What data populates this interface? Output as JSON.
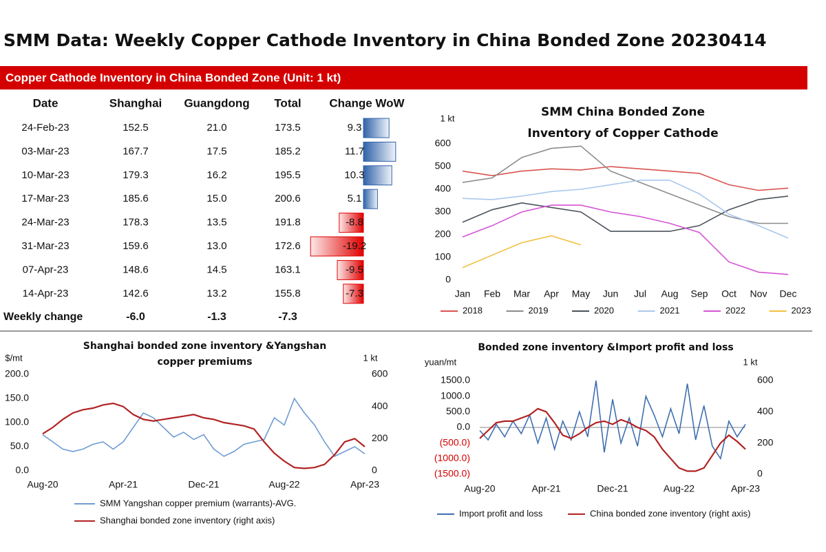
{
  "title": "SMM Data: Weekly Copper Cathode Inventory in China Bonded Zone 20230414",
  "table": {
    "caption": "Copper Cathode Inventory in China Bonded Zone (Unit: 1 kt)",
    "columns": [
      "Date",
      "Shanghai",
      "Guangdong",
      "Total",
      "Change WoW"
    ],
    "rows": [
      [
        "24-Feb-23",
        "152.5",
        "21.0",
        "173.5",
        9.3
      ],
      [
        "03-Mar-23",
        "167.7",
        "17.5",
        "185.2",
        11.7
      ],
      [
        "10-Mar-23",
        "179.3",
        "16.2",
        "195.5",
        10.3
      ],
      [
        "17-Mar-23",
        "185.6",
        "15.0",
        "200.6",
        5.1
      ],
      [
        "24-Mar-23",
        "178.3",
        "13.5",
        "191.8",
        -8.8
      ],
      [
        "31-Mar-23",
        "159.6",
        "13.0",
        "172.6",
        -19.2
      ],
      [
        "07-Apr-23",
        "148.6",
        "14.5",
        "163.1",
        -9.5
      ],
      [
        "14-Apr-23",
        "142.6",
        "13.2",
        "155.8",
        -7.3
      ]
    ],
    "footer": [
      "Weekly change",
      "-6.0",
      "-1.3",
      "-7.3"
    ]
  },
  "chart_data": [
    {
      "type": "line",
      "title": "SMM China Bonded Zone Inventory of Copper Cathode",
      "y_label": "1 kt",
      "categories": [
        "Jan",
        "Feb",
        "Mar",
        "Apr",
        "May",
        "Jun",
        "Jul",
        "Aug",
        "Sep",
        "Oct",
        "Nov",
        "Dec"
      ],
      "ylim": [
        0,
        600
      ],
      "yticks": [
        0,
        100,
        200,
        300,
        400,
        500,
        600
      ],
      "grid": false,
      "legend": "bottom",
      "series": [
        {
          "name": "2018",
          "color": "#d9534f",
          "values": [
            480,
            460,
            480,
            490,
            485,
            500,
            490,
            480,
            470,
            420,
            395,
            405
          ]
        },
        {
          "name": "2019",
          "color": "#8c8c8c",
          "values": [
            430,
            450,
            540,
            580,
            590,
            480,
            430,
            380,
            330,
            280,
            250,
            250
          ]
        },
        {
          "name": "2020",
          "color": "#4a525c",
          "values": [
            255,
            310,
            340,
            320,
            300,
            215,
            215,
            215,
            240,
            310,
            355,
            370
          ]
        },
        {
          "name": "2021",
          "color": "#a9c8ec",
          "values": [
            360,
            355,
            370,
            390,
            400,
            420,
            440,
            440,
            380,
            290,
            240,
            185
          ]
        },
        {
          "name": "2022",
          "color": "#d455d4",
          "values": [
            190,
            240,
            300,
            330,
            330,
            300,
            280,
            250,
            210,
            80,
            35,
            25
          ]
        },
        {
          "name": "2023",
          "color": "#f0c040",
          "values": [
            55,
            110,
            165,
            195,
            155,
            null,
            null,
            null,
            null,
            null,
            null,
            null
          ]
        }
      ]
    },
    {
      "type": "line",
      "title": "Shanghai bonded zone inventory &Yangshan copper premiums",
      "y_label": "$/mt",
      "y2_label": "1 kt",
      "categories": [
        "Aug-20",
        null,
        null,
        null,
        null,
        null,
        null,
        null,
        "Apr-21",
        null,
        null,
        null,
        null,
        null,
        null,
        null,
        "Dec-21",
        null,
        null,
        null,
        null,
        null,
        null,
        null,
        "Aug-22",
        null,
        null,
        null,
        null,
        null,
        null,
        null,
        "Apr-23"
      ],
      "ylim": [
        0,
        200
      ],
      "yticks": [
        {
          "value": 0,
          "label": "0.0"
        },
        {
          "value": 50,
          "label": "50.0"
        },
        {
          "value": 100,
          "label": "100.0"
        },
        {
          "value": 150,
          "label": "150.0"
        },
        {
          "value": 200,
          "label": "200.0"
        }
      ],
      "y2lim": [
        0,
        600
      ],
      "y2ticks": [
        0,
        200,
        400,
        600
      ],
      "grid": false,
      "legend": "bottom",
      "series": [
        {
          "name": "SMM Yangshan copper premium (warrants)-AVG.",
          "color": "#6f9bd1",
          "values": [
            75,
            60,
            45,
            40,
            45,
            55,
            60,
            45,
            60,
            90,
            120,
            110,
            90,
            70,
            80,
            65,
            75,
            45,
            30,
            40,
            55,
            60,
            65,
            110,
            95,
            150,
            120,
            95,
            60,
            30,
            40,
            50,
            35
          ]
        },
        {
          "name": "Shanghai bonded zone inventory (right axis)",
          "color": "#b22222",
          "axis": "y2",
          "values": [
            230,
            270,
            320,
            360,
            380,
            390,
            410,
            420,
            400,
            350,
            320,
            310,
            320,
            330,
            340,
            350,
            330,
            320,
            300,
            290,
            280,
            260,
            180,
            110,
            60,
            20,
            15,
            20,
            40,
            100,
            180,
            200,
            150
          ]
        }
      ]
    },
    {
      "type": "line",
      "title": "Bonded zone inventory &Import profit and loss",
      "y_label": "yuan/mt",
      "y2_label": "1 kt",
      "categories": [
        "Aug-20",
        null,
        null,
        null,
        null,
        null,
        null,
        null,
        "Apr-21",
        null,
        null,
        null,
        null,
        null,
        null,
        null,
        "Dec-21",
        null,
        null,
        null,
        null,
        null,
        null,
        null,
        "Aug-22",
        null,
        null,
        null,
        null,
        null,
        null,
        null,
        "Apr-23"
      ],
      "ylim": [
        -1500,
        1500
      ],
      "yticks": [
        {
          "value": -1500,
          "label": "(1500.0)"
        },
        {
          "value": -1000,
          "label": "(1000.0)"
        },
        {
          "value": -500,
          "label": "(500.0)"
        },
        {
          "value": 0,
          "label": "0.0"
        },
        {
          "value": 500,
          "label": "500.0"
        },
        {
          "value": 1000,
          "label": "1000.0"
        },
        {
          "value": 1500,
          "label": "1500.0"
        }
      ],
      "y2lim": [
        0,
        600
      ],
      "y2ticks": [
        0,
        200,
        400,
        600
      ],
      "grid": false,
      "legend": "bottom",
      "series": [
        {
          "name": "Import profit and loss",
          "color": "#3e6fb0",
          "values": [
            -100,
            -400,
            100,
            -300,
            200,
            -200,
            400,
            -500,
            300,
            -700,
            200,
            -400,
            500,
            -300,
            1500,
            -800,
            900,
            -500,
            300,
            -600,
            1000,
            400,
            -300,
            600,
            -200,
            1400,
            -400,
            700,
            -600,
            -1000,
            200,
            -300,
            100
          ]
        },
        {
          "name": "China bonded zone inventory (right axis)",
          "color": "#b22222",
          "axis": "y2",
          "values": [
            230,
            280,
            330,
            340,
            340,
            360,
            380,
            420,
            400,
            330,
            250,
            230,
            260,
            300,
            330,
            340,
            320,
            350,
            330,
            300,
            280,
            240,
            160,
            100,
            40,
            20,
            20,
            40,
            120,
            200,
            250,
            210,
            160
          ]
        }
      ]
    }
  ]
}
